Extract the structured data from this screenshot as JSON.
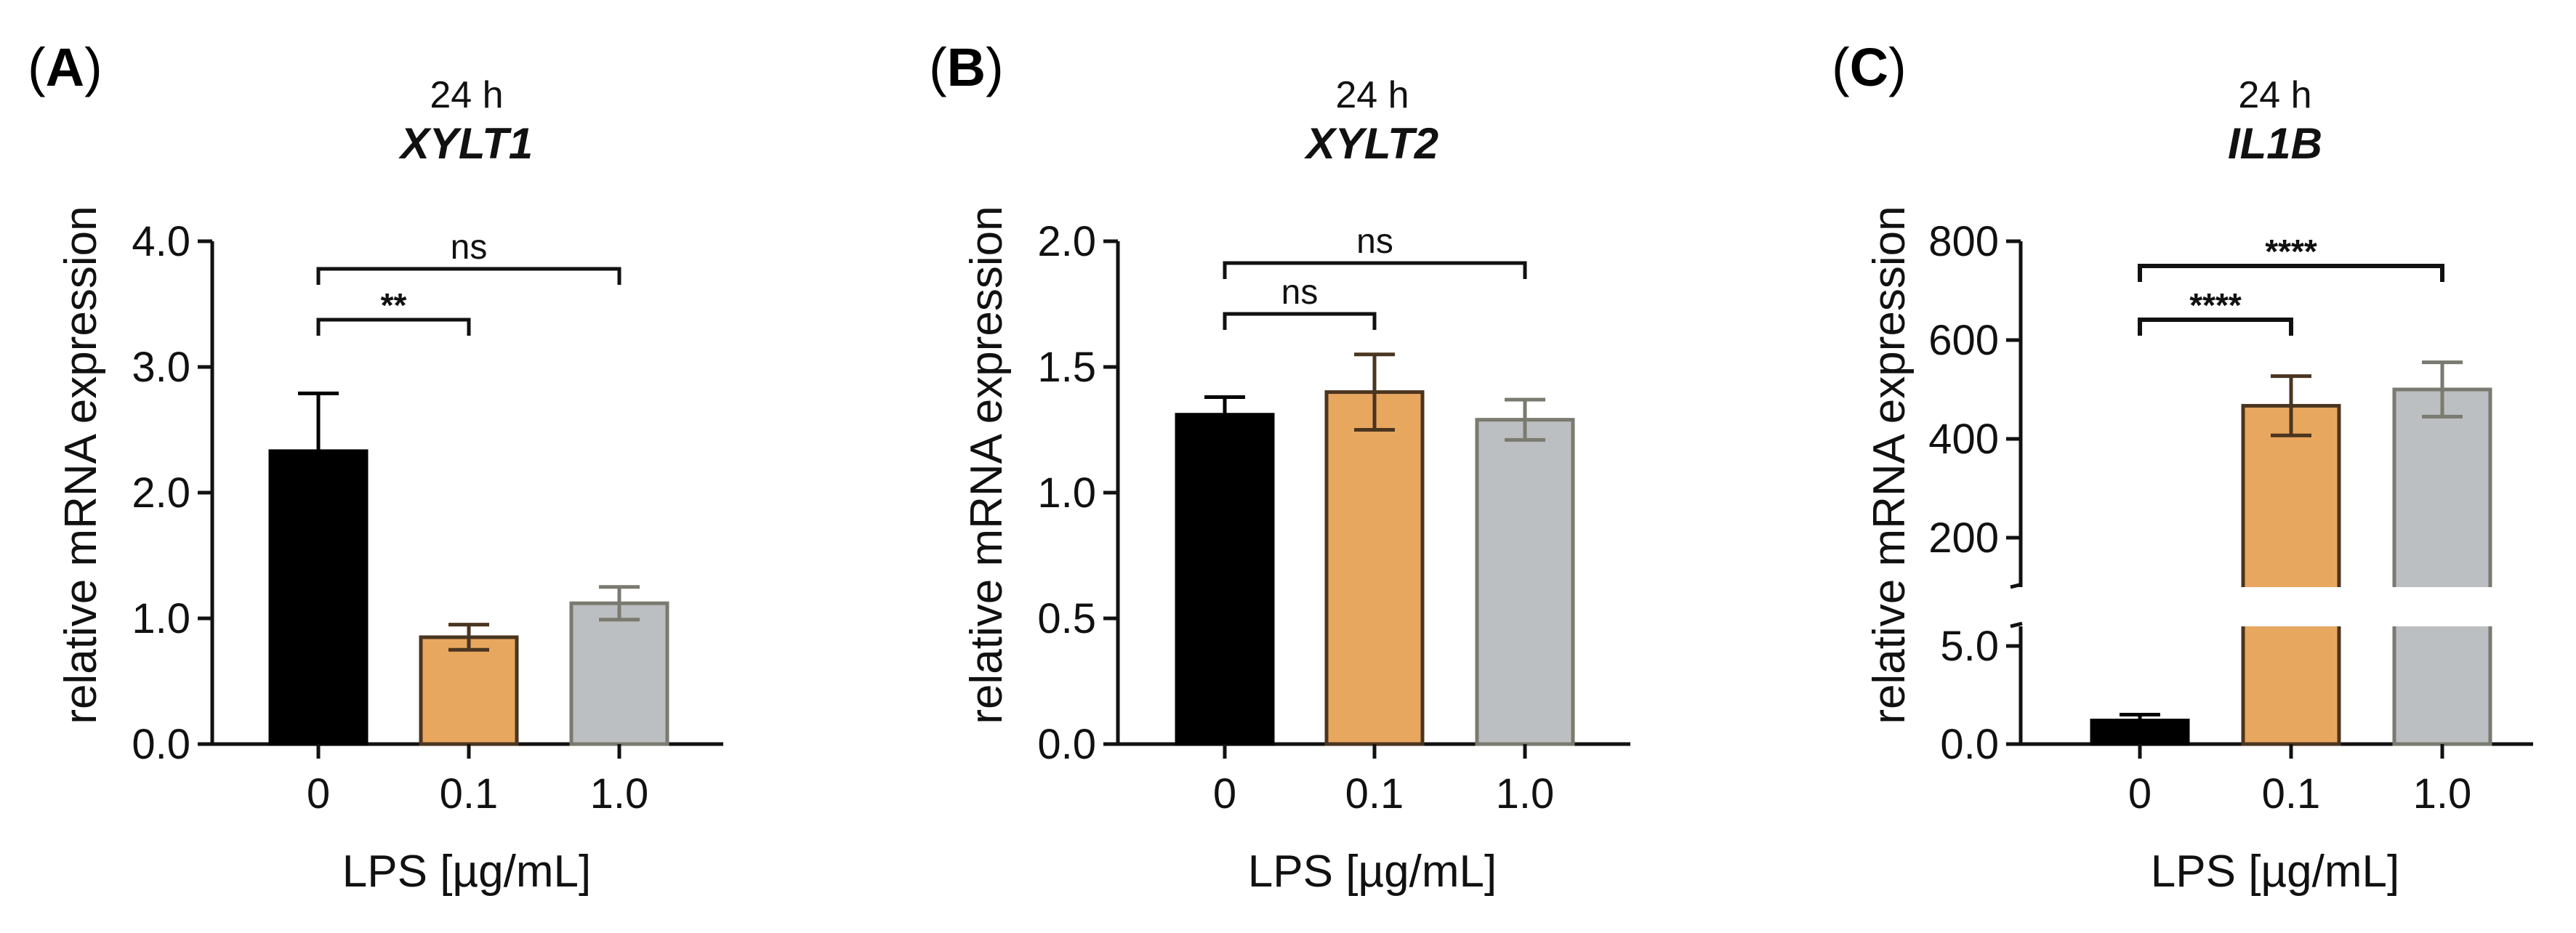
{
  "chart_data": [
    {
      "panel": "(A)",
      "panel_letter": "A",
      "type": "bar",
      "condition": "24 h",
      "title": "XYLT1",
      "xlabel": "LPS [µg/mL]",
      "ylabel": "relative mRNA expression",
      "categories": [
        "0",
        "0.1",
        "1.0"
      ],
      "values": [
        2.33,
        0.85,
        1.12
      ],
      "errors": [
        0.46,
        0.1,
        0.13
      ],
      "colors": [
        "#000000",
        "#e8a75f",
        "#bcbfc1"
      ],
      "edge_colors": [
        "#000000",
        "#4a3520",
        "#7a7a70"
      ],
      "ylim": [
        0,
        4.0
      ],
      "yticks": [
        0.0,
        1.0,
        2.0,
        3.0,
        4.0
      ],
      "ytick_labels": [
        "0.0",
        "1.0",
        "2.0",
        "3.0",
        "4.0"
      ],
      "comparisons": [
        {
          "from": 0,
          "to": 1,
          "label": "**",
          "level": 1
        },
        {
          "from": 0,
          "to": 2,
          "label": "ns",
          "level": 2
        }
      ]
    },
    {
      "panel": "(B)",
      "panel_letter": "B",
      "type": "bar",
      "condition": "24 h",
      "title": "XYLT2",
      "xlabel": "LPS [µg/mL]",
      "ylabel": "relative mRNA expression",
      "categories": [
        "0",
        "0.1",
        "1.0"
      ],
      "values": [
        1.31,
        1.4,
        1.29
      ],
      "errors": [
        0.07,
        0.15,
        0.08
      ],
      "colors": [
        "#000000",
        "#e8a75f",
        "#bcbfc1"
      ],
      "edge_colors": [
        "#000000",
        "#4a3520",
        "#7a7a70"
      ],
      "ylim": [
        0,
        2.0
      ],
      "yticks": [
        0.0,
        0.5,
        1.0,
        1.5,
        2.0
      ],
      "ytick_labels": [
        "0.0",
        "0.5",
        "1.0",
        "1.5",
        "2.0"
      ],
      "comparisons": [
        {
          "from": 0,
          "to": 1,
          "label": "ns",
          "level": 1
        },
        {
          "from": 0,
          "to": 2,
          "label": "ns",
          "level": 2
        }
      ]
    },
    {
      "panel": "(C)",
      "panel_letter": "C",
      "type": "bar",
      "condition": "24 h",
      "title": "IL1B",
      "xlabel": "LPS [µg/mL]",
      "ylabel": "relative mRNA expression",
      "categories": [
        "0",
        "0.1",
        "1.0"
      ],
      "values": [
        1.2,
        467,
        500
      ],
      "errors": [
        0.3,
        60,
        55
      ],
      "colors": [
        "#000000",
        "#e8a75f",
        "#bcbfc1"
      ],
      "edge_colors": [
        "#000000",
        "#4a3520",
        "#7a7a70"
      ],
      "broken_axis": {
        "lower_range": [
          0,
          6.0
        ],
        "upper_range": [
          100,
          800
        ],
        "lower_ticks": [
          0.0,
          5.0
        ],
        "lower_tick_labels": [
          "0.0",
          "5.0"
        ],
        "upper_ticks": [
          200,
          400,
          600,
          800
        ],
        "upper_tick_labels": [
          "200",
          "400",
          "600",
          "800"
        ]
      },
      "comparisons": [
        {
          "from": 0,
          "to": 1,
          "label": "****",
          "level": 1
        },
        {
          "from": 0,
          "to": 2,
          "label": "****",
          "level": 2
        }
      ]
    }
  ]
}
